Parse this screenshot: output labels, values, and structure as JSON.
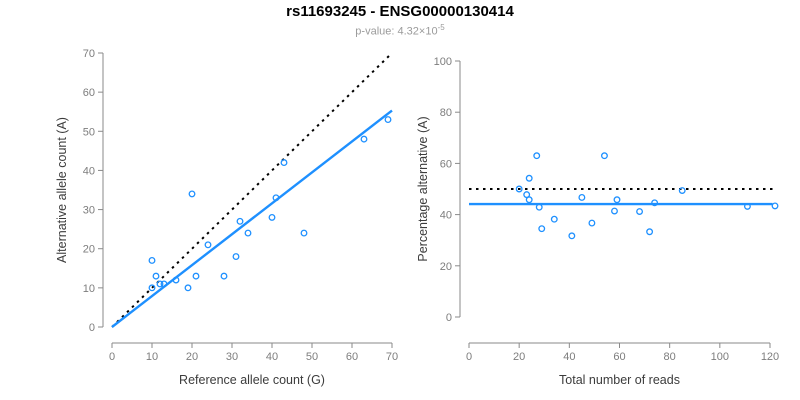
{
  "header": {
    "title": "rs11693245 - ENSG00000130414",
    "pvalue_label": "p-value: 4.32×10",
    "pvalue_exponent": "-5"
  },
  "colors": {
    "accent_blue": "#1E90FF",
    "identity_black": "#000000",
    "axis_gray": "#8a8a8a",
    "tick_text_gray": "#7d7d7d",
    "axis_title_gray": "#3c3c3c",
    "subtitle_gray": "#9b9b9b"
  },
  "chart_data": [
    {
      "type": "scatter",
      "panel": "left",
      "xlabel": "Reference allele count (G)",
      "ylabel": "Alternative allele count (A)",
      "xlim": [
        0,
        70
      ],
      "ylim": [
        0,
        70
      ],
      "xticks": [
        0,
        10,
        20,
        30,
        40,
        50,
        60,
        70
      ],
      "yticks": [
        0,
        10,
        20,
        30,
        40,
        50,
        60,
        70
      ],
      "grid": false,
      "points": [
        [
          10,
          17
        ],
        [
          11,
          13
        ],
        [
          10,
          10
        ],
        [
          12,
          11
        ],
        [
          13,
          11
        ],
        [
          16,
          12
        ],
        [
          19,
          10
        ],
        [
          20,
          34
        ],
        [
          21,
          13
        ],
        [
          24,
          21
        ],
        [
          28,
          13
        ],
        [
          31,
          18
        ],
        [
          32,
          27
        ],
        [
          34,
          24
        ],
        [
          40,
          28
        ],
        [
          41,
          33
        ],
        [
          43,
          42
        ],
        [
          48,
          24
        ],
        [
          63,
          48
        ],
        [
          69,
          53
        ]
      ],
      "lines": [
        {
          "name": "identity-line",
          "slope": 1,
          "intercept": 0,
          "dashed": true,
          "color": "#000000",
          "x_range": [
            0,
            70
          ]
        },
        {
          "name": "fit-line",
          "slope": 0.79,
          "intercept": 0,
          "dashed": false,
          "color": "#1E90FF",
          "x_range": [
            0,
            70
          ]
        }
      ]
    },
    {
      "type": "scatter",
      "panel": "right",
      "xlabel": "Total number of reads",
      "ylabel": "Percentage alternative (A)",
      "xlim": [
        0,
        120
      ],
      "ylim": [
        0,
        100
      ],
      "xticks": [
        0,
        20,
        40,
        60,
        80,
        100,
        120
      ],
      "yticks": [
        0,
        20,
        40,
        60,
        80,
        100
      ],
      "grid": false,
      "points": [
        [
          27,
          63.0
        ],
        [
          24,
          54.2
        ],
        [
          20,
          50.0
        ],
        [
          23,
          47.8
        ],
        [
          24,
          45.8
        ],
        [
          28,
          42.9
        ],
        [
          29,
          34.5
        ],
        [
          54,
          63.0
        ],
        [
          34,
          38.2
        ],
        [
          45,
          46.7
        ],
        [
          41,
          31.7
        ],
        [
          49,
          36.7
        ],
        [
          59,
          45.8
        ],
        [
          58,
          41.4
        ],
        [
          68,
          41.2
        ],
        [
          74,
          44.6
        ],
        [
          85,
          49.4
        ],
        [
          72,
          33.3
        ],
        [
          111,
          43.2
        ],
        [
          122,
          43.4
        ]
      ],
      "lines": [
        {
          "name": "null-50pct-line",
          "slope": 0,
          "intercept": 50,
          "dashed": true,
          "color": "#000000",
          "x_range": [
            0,
            121
          ]
        },
        {
          "name": "mean-pct-line",
          "slope": 0,
          "intercept": 44.1,
          "dashed": false,
          "color": "#1E90FF",
          "x_range": [
            0,
            121
          ]
        }
      ]
    }
  ]
}
